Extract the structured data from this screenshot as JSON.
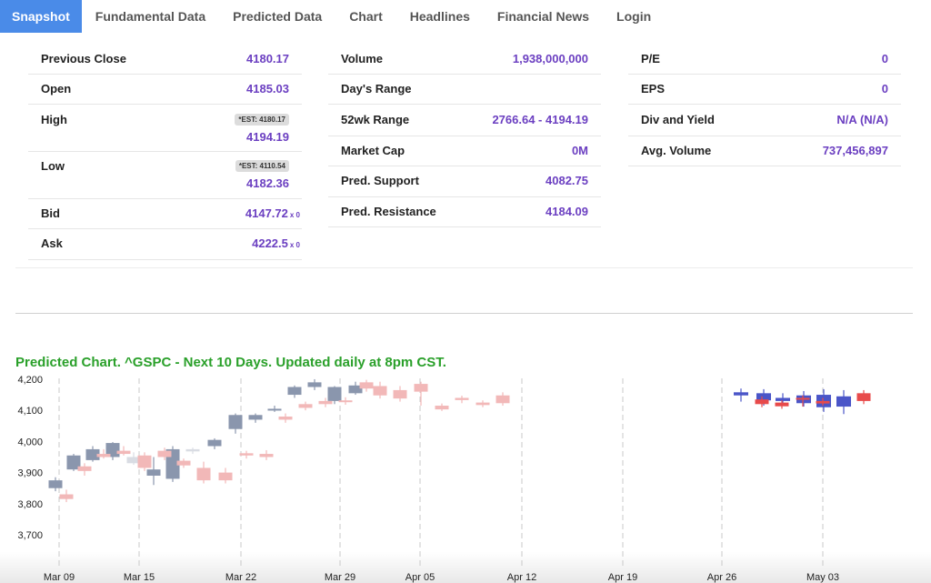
{
  "nav": {
    "tabs": [
      "Snapshot",
      "Fundamental Data",
      "Predicted Data",
      "Chart",
      "Headlines",
      "Financial News",
      "Login"
    ],
    "active": 0
  },
  "stats": {
    "col1": [
      {
        "label": "Previous Close",
        "value": "4180.17"
      },
      {
        "label": "Open",
        "value": "4185.03"
      },
      {
        "label": "High",
        "value": "4194.19",
        "est": "*EST: 4180.17"
      },
      {
        "label": "Low",
        "value": "4182.36",
        "est": "*EST: 4110.54"
      },
      {
        "label": "Bid",
        "value": "4147.72",
        "suffix": "x 0"
      },
      {
        "label": "Ask",
        "value": "4222.5",
        "suffix": "x 0"
      }
    ],
    "col2": [
      {
        "label": "Volume",
        "value": "1,938,000,000"
      },
      {
        "label": "Day's Range",
        "value": ""
      },
      {
        "label": "52wk Range",
        "value": "2766.64 - 4194.19"
      },
      {
        "label": "Market Cap",
        "value": "0M"
      },
      {
        "label": "Pred. Support",
        "value": "4082.75"
      },
      {
        "label": "Pred. Resistance",
        "value": "4184.09"
      }
    ],
    "col3": [
      {
        "label": "P/E",
        "value": "0"
      },
      {
        "label": "EPS",
        "value": "0"
      },
      {
        "label": "Div and Yield",
        "value": "N/A (N/A)"
      },
      {
        "label": "Avg. Volume",
        "value": "737,456,897"
      }
    ]
  },
  "chart_title": "Predicted Chart. ^GSPC - Next 10 Days. Updated daily at 8pm CST.",
  "chart_data": {
    "type": "candlestick",
    "title": "Predicted Chart. ^GSPC - Next 10 Days. Updated daily at 8pm CST.",
    "ylim": [
      3700,
      4270
    ],
    "yticks": [
      3700,
      3800,
      3900,
      4000,
      4100,
      4200
    ],
    "ytick_labels": [
      "3,700",
      "3,800",
      "3,900",
      "4,000",
      "4,100",
      "4,200"
    ],
    "xticks": [
      "Mar 09",
      "Mar 15",
      "Mar 22",
      "Mar 29",
      "Apr 05",
      "Apr 12",
      "Apr 19",
      "Apr 26",
      "May 03"
    ],
    "grid_x": true,
    "colors": {
      "actual_up": "#8a96ad",
      "actual_down": "#d9dce3",
      "pred_up": "#e84a4a",
      "pred_down": "#f2b8b8",
      "forecast": "#4a55c8"
    },
    "series": [
      {
        "kind": "pred_up",
        "candles": [
          [
            3830,
            3815,
            3845,
            3805
          ],
          [
            3920,
            3905,
            3930,
            3890
          ],
          [
            3960,
            3950,
            3975,
            3945
          ],
          [
            3970,
            3960,
            3985,
            3955
          ],
          [
            3955,
            3915,
            3965,
            3905
          ],
          [
            3970,
            3950,
            3980,
            3940
          ],
          [
            3938,
            3923,
            3945,
            3915
          ],
          [
            3915,
            3875,
            3935,
            3865
          ],
          [
            3900,
            3875,
            3915,
            3865
          ],
          [
            3962,
            3955,
            3970,
            3945
          ],
          [
            3960,
            3950,
            3972,
            3940
          ],
          [
            4080,
            4070,
            4090,
            4060
          ],
          [
            4120,
            4108,
            4128,
            4100
          ],
          [
            4130,
            4120,
            4140,
            4110
          ],
          [
            4132,
            4127,
            4142,
            4118
          ],
          [
            4190,
            4170,
            4198,
            4160
          ],
          [
            4178,
            4148,
            4192,
            4138
          ],
          [
            4165,
            4138,
            4178,
            4128
          ],
          [
            4185,
            4160,
            4192,
            4115
          ],
          [
            4115,
            4103,
            4122,
            4098
          ],
          [
            4140,
            4133,
            4147,
            4123
          ],
          [
            4125,
            4117,
            4132,
            4110
          ],
          [
            4148,
            4123,
            4158,
            4115
          ]
        ]
      },
      {
        "kind": "forecast",
        "candles": [
          [
            4158,
            4148,
            4170,
            4128
          ],
          [
            4155,
            4132,
            4168,
            4115
          ],
          [
            4140,
            4130,
            4155,
            4118
          ],
          [
            4148,
            4123,
            4162,
            4112
          ],
          [
            4150,
            4110,
            4168,
            4095
          ],
          [
            4145,
            4112,
            4165,
            4088
          ]
        ]
      },
      {
        "kind": "actual",
        "candles": [
          [
            3850,
            3875,
            3885,
            3840
          ],
          [
            3910,
            3955,
            3960,
            3905
          ],
          [
            3940,
            3975,
            3985,
            3935
          ],
          [
            3950,
            3995,
            3998,
            3940
          ],
          [
            3950,
            3930,
            3965,
            3925
          ],
          [
            3890,
            3910,
            3950,
            3860
          ],
          [
            3880,
            3975,
            3985,
            3870
          ],
          [
            3975,
            3968,
            3980,
            3960
          ],
          [
            3985,
            4005,
            4010,
            3975
          ],
          [
            4040,
            4085,
            4090,
            4025
          ],
          [
            4070,
            4085,
            4090,
            4060
          ],
          [
            4100,
            4105,
            4115,
            4095
          ],
          [
            4150,
            4175,
            4180,
            4140
          ],
          [
            4175,
            4190,
            4200,
            4165
          ],
          [
            4130,
            4175,
            4178,
            4120
          ],
          [
            4155,
            4180,
            4192,
            4150
          ]
        ]
      }
    ]
  }
}
